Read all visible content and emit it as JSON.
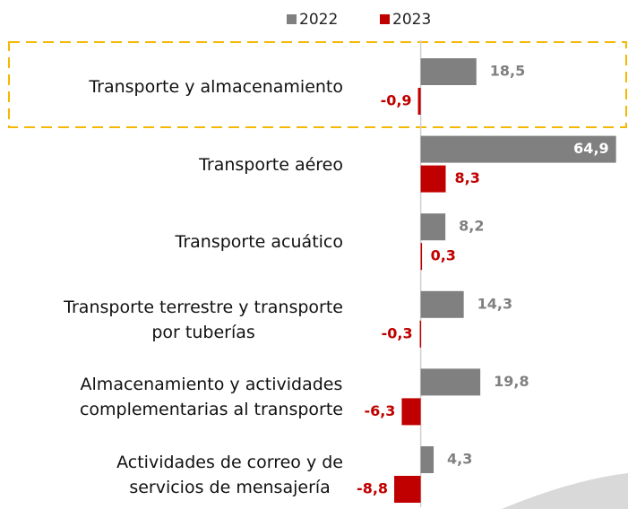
{
  "chart_data": {
    "type": "bar",
    "orientation": "horizontal",
    "categories": [
      "Transporte y almacenamiento",
      "Transporte aéreo",
      "Transporte acuático",
      "Transporte terrestre y transporte\npor tuberías",
      "Almacenamiento y actividades\ncomplementarias al transporte",
      "Actividades de correo y de\nservicios de mensajería"
    ],
    "series": [
      {
        "name": "2022",
        "color": "#808080",
        "values": [
          18.5,
          64.9,
          8.2,
          14.3,
          19.8,
          4.3
        ],
        "value_labels": [
          "18,5",
          "64,9",
          "8,2",
          "14,3",
          "19,8",
          "4,3"
        ]
      },
      {
        "name": "2023",
        "color": "#c00000",
        "values": [
          -0.9,
          8.3,
          0.3,
          -0.3,
          -6.3,
          -8.8
        ],
        "value_labels": [
          "-0,9",
          "8,3",
          "0,3",
          "-0,3",
          "-6,3",
          "-8,8"
        ]
      }
    ],
    "xlim": [
      -10,
      65
    ],
    "legend": "top"
  }
}
